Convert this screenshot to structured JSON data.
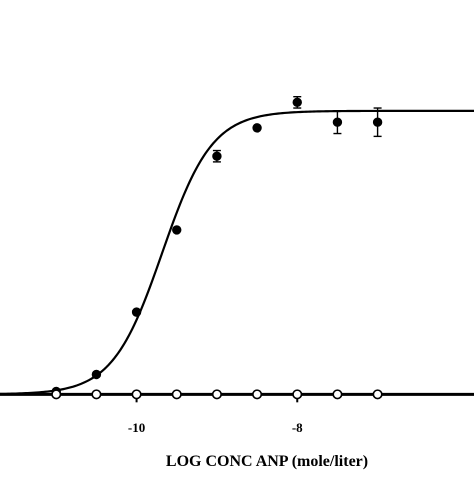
{
  "chart_data": {
    "type": "scatter",
    "title": "",
    "xlabel": "LOG CONC ANP (mole/liter)",
    "ylabel": "",
    "xlim": [
      -11.7,
      -5.8
    ],
    "ylim": [
      -0.02,
      1.25
    ],
    "x_ticks": [
      {
        "value": -10,
        "label": "-10"
      },
      {
        "value": -8,
        "label": "-8"
      }
    ],
    "grid": false,
    "legend": "none",
    "colors": {
      "axis": "#000000",
      "curve": "#000000",
      "filled_marker": "#000000",
      "open_marker_fill": "#ffffff"
    },
    "fitted_curve": {
      "model": "logistic",
      "bottom": 0.0,
      "top": 1.0,
      "log_ec50": -9.68,
      "hill_slope": 1.4
    },
    "series": [
      {
        "marker": "filled-circle",
        "points": [
          {
            "x": -11.0,
            "y": 0.01,
            "err": 0.0
          },
          {
            "x": -10.5,
            "y": 0.07,
            "err": 0.0
          },
          {
            "x": -10.0,
            "y": 0.29,
            "err": 0.0
          },
          {
            "x": -9.5,
            "y": 0.58,
            "err": 0.0
          },
          {
            "x": -9.0,
            "y": 0.84,
            "err": 0.02
          },
          {
            "x": -8.5,
            "y": 0.94,
            "err": 0.0
          },
          {
            "x": -8.0,
            "y": 1.03,
            "err": 0.02
          },
          {
            "x": -7.5,
            "y": 0.96,
            "err": 0.04
          },
          {
            "x": -7.0,
            "y": 0.96,
            "err": 0.05
          }
        ]
      },
      {
        "marker": "open-circle",
        "points": [
          {
            "x": -11.0,
            "y": 0.0
          },
          {
            "x": -10.5,
            "y": 0.0
          },
          {
            "x": -10.0,
            "y": 0.0
          },
          {
            "x": -9.5,
            "y": 0.0
          },
          {
            "x": -9.0,
            "y": 0.0
          },
          {
            "x": -8.5,
            "y": 0.0
          },
          {
            "x": -8.0,
            "y": 0.0
          },
          {
            "x": -7.5,
            "y": 0.0
          },
          {
            "x": -7.0,
            "y": 0.0
          }
        ]
      }
    ]
  }
}
